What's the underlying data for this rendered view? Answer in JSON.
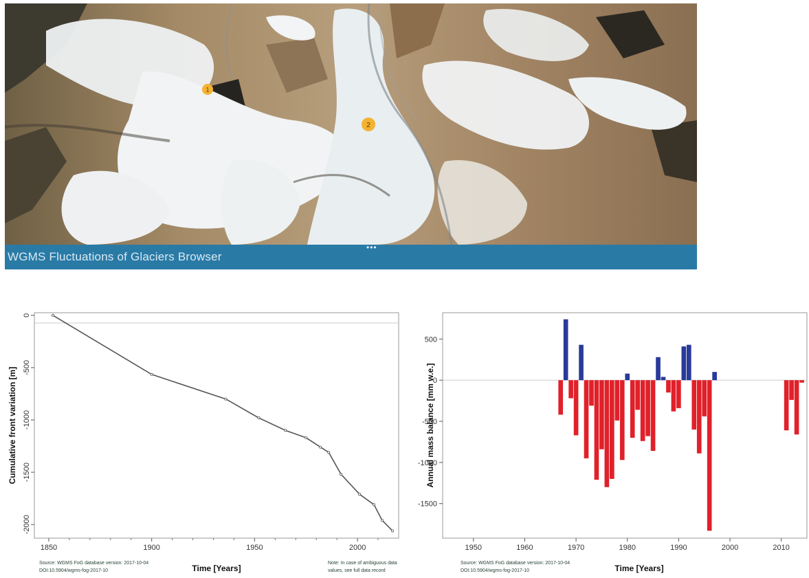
{
  "footer": {
    "title": "WGMS Fluctuations of Glaciers Browser",
    "dots": "•••"
  },
  "markers": [
    {
      "label": "1"
    },
    {
      "label": "2"
    }
  ],
  "colors": {
    "bar_bg": "#2a7aa6",
    "marker": "#f4b233",
    "positive": "#2a3a9a",
    "negative": "#e0212a",
    "line": "#555555"
  },
  "chart_data": [
    {
      "type": "line",
      "title": "",
      "xlabel": "Time [Years]",
      "ylabel": "Cumulative front variation [m]",
      "xlim": [
        1843,
        2020
      ],
      "ylim": [
        -2130,
        25
      ],
      "xticks": [
        1850,
        1900,
        1950,
        2000
      ],
      "yticks": [
        0,
        -500,
        -1000,
        -1500,
        -2000
      ],
      "grid": false,
      "x": [
        1852,
        1900,
        1936,
        1952,
        1965,
        1975,
        1982,
        1986,
        1992,
        2001,
        2008,
        2012,
        2017
      ],
      "y": [
        0,
        -565,
        -800,
        -980,
        -1100,
        -1170,
        -1260,
        -1310,
        -1520,
        -1710,
        -1810,
        -1960,
        -2060
      ],
      "source": "Source: WGMS FoG database version: 2017-10-04",
      "doi": "DOI:10.5904/wgms-fog-2017-10",
      "note_line1": "Note: In case of ambiguous data",
      "note_line2": "values, see full data record"
    },
    {
      "type": "bar",
      "title": "",
      "xlabel": "Time [Years]",
      "ylabel": "Annual mass balance [mm w.e.]",
      "xlim": [
        1944,
        2015
      ],
      "ylim": [
        -1920,
        820
      ],
      "xticks": [
        1950,
        1960,
        1970,
        1980,
        1990,
        2000,
        2010
      ],
      "yticks": [
        500,
        0,
        -500,
        -1000,
        -1500
      ],
      "grid": false,
      "years": [
        1967,
        1968,
        1969,
        1970,
        1971,
        1972,
        1973,
        1974,
        1975,
        1976,
        1977,
        1978,
        1979,
        1980,
        1981,
        1982,
        1983,
        1984,
        1985,
        1986,
        1987,
        1988,
        1989,
        1990,
        1991,
        1992,
        1993,
        1994,
        1995,
        1996,
        1997,
        2011,
        2012,
        2013,
        2014
      ],
      "values": [
        -420,
        740,
        -220,
        -670,
        430,
        -950,
        -310,
        -1210,
        -840,
        -1300,
        -1200,
        -490,
        -970,
        80,
        -700,
        -360,
        -740,
        -680,
        -860,
        280,
        40,
        -150,
        -380,
        -340,
        410,
        430,
        -600,
        -890,
        -440,
        -1830,
        100,
        -610,
        -240,
        -660,
        -30
      ],
      "source": "Source: WGMS FoG database version: 2017-10-04",
      "doi": "DOI:10.5904/wgms-fog-2017-10"
    }
  ]
}
